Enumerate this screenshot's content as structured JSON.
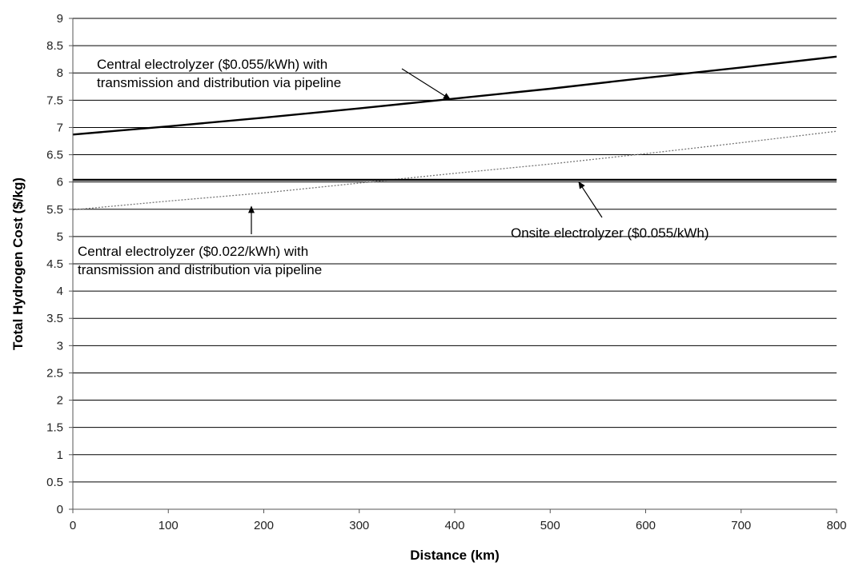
{
  "chart_data": {
    "type": "line",
    "title": "",
    "xlabel": "Distance (km)",
    "ylabel": "Total Hydrogen Cost ($/kg)",
    "xlim": [
      0,
      800
    ],
    "ylim": [
      0,
      9
    ],
    "x_ticks": [
      0,
      100,
      200,
      300,
      400,
      500,
      600,
      700,
      800
    ],
    "y_ticks": [
      0,
      0.5,
      1,
      1.5,
      2,
      2.5,
      3,
      3.5,
      4,
      4.5,
      5,
      5.5,
      6,
      6.5,
      7,
      7.5,
      8,
      8.5,
      9
    ],
    "y_tick_labels": [
      "0",
      "0.5",
      "1",
      "1.5",
      "2",
      "2.5",
      "3",
      "3.5",
      "4",
      "4.5",
      "5",
      "5.5",
      "6",
      "6.5",
      "7",
      "7.5",
      "8",
      "8.5",
      "9"
    ],
    "grid": "horizontal",
    "legend": "none",
    "series": [
      {
        "color": "#000000",
        "style": "solid",
        "x": [
          0,
          100,
          200,
          300,
          400,
          500,
          600,
          700,
          800
        ],
        "y": [
          6.87,
          7.02,
          7.18,
          7.35,
          7.53,
          7.71,
          7.91,
          8.1,
          8.3
        ]
      },
      {
        "color": "#777777",
        "style": "dotted",
        "x": [
          0,
          100,
          200,
          300,
          400,
          500,
          600,
          700,
          800
        ],
        "y": [
          5.49,
          5.65,
          5.8,
          5.98,
          6.16,
          6.33,
          6.52,
          6.72,
          6.93
        ]
      },
      {
        "color": "#000000",
        "style": "solid",
        "x": [
          0,
          800
        ],
        "y": [
          6.04,
          6.04
        ]
      }
    ],
    "annotations": [
      {
        "lines": [
          "Central electrolyzer ($0.055/kWh) with",
          "transmission and distribution via pipeline"
        ],
        "arrow_to": [
          395,
          7.52
        ]
      },
      {
        "lines": [
          "Onsite electrolyzer ($0.055/kWh)"
        ],
        "arrow_to": [
          530,
          6.0
        ]
      },
      {
        "lines": [
          "Central electrolyzer ($0.022/kWh) with",
          "transmission and distribution via pipeline"
        ],
        "arrow_to": [
          187,
          5.55
        ]
      }
    ]
  }
}
